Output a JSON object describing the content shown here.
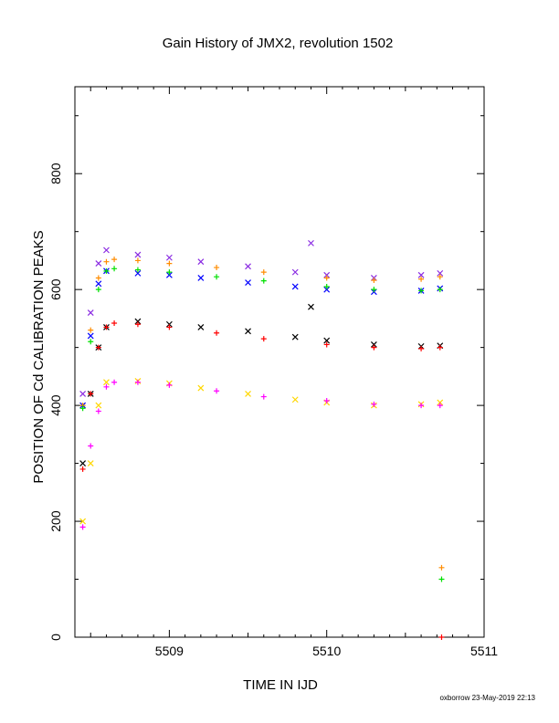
{
  "chart_data": {
    "type": "scatter",
    "title": "Gain History of JMX2, revolution 1502",
    "xlabel": "TIME IN IJD",
    "ylabel": "POSITION OF Cd CALIBRATION PEAKS",
    "xlim": [
      5508.4,
      5511.0
    ],
    "ylim": [
      0,
      950
    ],
    "x_ticks": [
      5509,
      5510,
      5511
    ],
    "x_tick_labels": [
      "5509",
      "5510",
      "5511"
    ],
    "y_ticks": [
      0,
      200,
      400,
      600,
      800
    ],
    "y_tick_labels": [
      "0",
      "200",
      "400",
      "600",
      "800"
    ],
    "grid": false,
    "legend": "none",
    "footer": "oxborrow 23-May-2019 22:13",
    "series": [
      {
        "color": "#8a2be2",
        "marker": "x",
        "x": [
          5508.45,
          5508.5,
          5508.55,
          5508.6,
          5508.8,
          5509.0,
          5509.2,
          5509.5,
          5509.8,
          5509.9,
          5510.0,
          5510.3,
          5510.6,
          5510.72
        ],
        "y": [
          420,
          560,
          645,
          668,
          660,
          655,
          648,
          640,
          630,
          680,
          625,
          620,
          625,
          628
        ]
      },
      {
        "color": "#0000ff",
        "marker": "x",
        "x": [
          5508.45,
          5508.5,
          5508.55,
          5508.6,
          5508.8,
          5509.0,
          5509.2,
          5509.5,
          5509.8,
          5510.0,
          5510.3,
          5510.6,
          5510.72
        ],
        "y": [
          400,
          520,
          610,
          632,
          628,
          625,
          620,
          612,
          605,
          600,
          596,
          598,
          602
        ]
      },
      {
        "color": "#000000",
        "marker": "x",
        "x": [
          5508.45,
          5508.5,
          5508.55,
          5508.6,
          5508.8,
          5509.0,
          5509.2,
          5509.5,
          5509.8,
          5509.9,
          5510.0,
          5510.3,
          5510.6,
          5510.72
        ],
        "y": [
          300,
          420,
          500,
          535,
          545,
          540,
          535,
          528,
          518,
          570,
          512,
          505,
          502,
          503
        ]
      },
      {
        "color": "#ffd700",
        "marker": "x",
        "x": [
          5508.45,
          5508.5,
          5508.55,
          5508.6,
          5508.8,
          5509.0,
          5509.2,
          5509.5,
          5509.8,
          5510.0,
          5510.3,
          5510.6,
          5510.72
        ],
        "y": [
          200,
          300,
          400,
          440,
          442,
          438,
          430,
          420,
          410,
          405,
          400,
          402,
          405
        ]
      },
      {
        "color": "#ff8c00",
        "marker": "+",
        "x": [
          5508.45,
          5508.5,
          5508.55,
          5508.6,
          5508.65,
          5508.8,
          5509.0,
          5509.3,
          5509.6,
          5510.0,
          5510.3,
          5510.6,
          5510.72,
          5510.73
        ],
        "y": [
          400,
          530,
          620,
          648,
          652,
          650,
          645,
          638,
          630,
          620,
          616,
          618,
          622,
          120
        ]
      },
      {
        "color": "#00e000",
        "marker": "+",
        "x": [
          5508.45,
          5508.5,
          5508.55,
          5508.6,
          5508.65,
          5508.8,
          5509.0,
          5509.3,
          5509.6,
          5510.0,
          5510.3,
          5510.6,
          5510.72,
          5510.73
        ],
        "y": [
          395,
          510,
          600,
          632,
          636,
          634,
          630,
          622,
          615,
          605,
          600,
          598,
          600,
          100
        ]
      },
      {
        "color": "#ff0000",
        "marker": "+",
        "x": [
          5508.45,
          5508.5,
          5508.55,
          5508.6,
          5508.65,
          5508.8,
          5509.0,
          5509.3,
          5509.6,
          5510.0,
          5510.3,
          5510.6,
          5510.72,
          5510.73
        ],
        "y": [
          290,
          420,
          500,
          535,
          542,
          540,
          535,
          525,
          515,
          505,
          500,
          498,
          500,
          0
        ]
      },
      {
        "color": "#ff00ff",
        "marker": "+",
        "x": [
          5508.45,
          5508.5,
          5508.55,
          5508.6,
          5508.65,
          5508.8,
          5509.0,
          5509.3,
          5509.6,
          5510.0,
          5510.3,
          5510.6,
          5510.72
        ],
        "y": [
          190,
          330,
          390,
          432,
          440,
          440,
          435,
          425,
          415,
          408,
          402,
          400,
          400
        ]
      }
    ]
  }
}
